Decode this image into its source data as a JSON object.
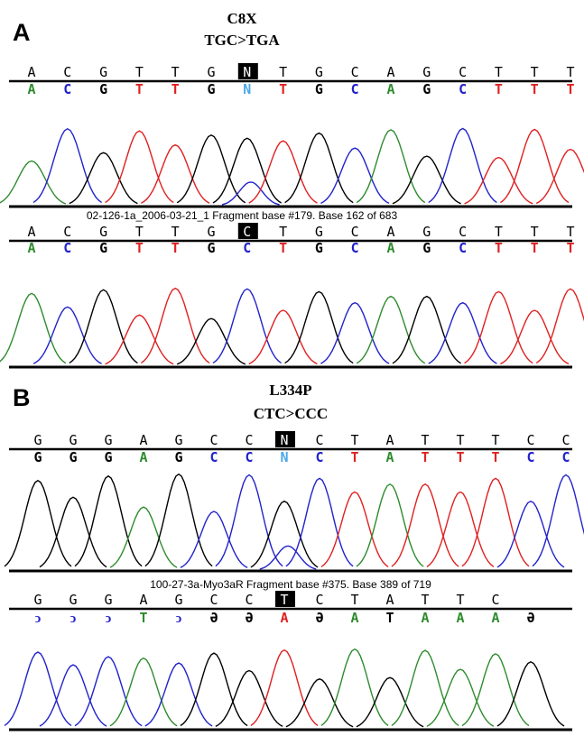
{
  "colors": {
    "A": "#2e8b2e",
    "C": "#2222cc",
    "G": "#000000",
    "T": "#e02020",
    "N": "#4aa8e8"
  },
  "panels": [
    {
      "letter": "A",
      "mutation": {
        "protein": "C8X",
        "codon": "TGC>TGA"
      },
      "tracks": [
        {
          "reference": [
            "A",
            "C",
            "G",
            "T",
            "T",
            "G",
            "N",
            "T",
            "G",
            "C",
            "A",
            "G",
            "C",
            "T",
            "T",
            "T"
          ],
          "calls": [
            "A",
            "C",
            "G",
            "T",
            "T",
            "G",
            "N",
            "T",
            "G",
            "C",
            "A",
            "G",
            "C",
            "T",
            "T",
            "T"
          ],
          "highlight": 6,
          "caption": ""
        },
        {
          "reference": [
            "A",
            "C",
            "G",
            "T",
            "T",
            "G",
            "C",
            "T",
            "G",
            "C",
            "A",
            "G",
            "C",
            "T",
            "T",
            "T"
          ],
          "calls": [
            "A",
            "C",
            "G",
            "T",
            "T",
            "G",
            "C",
            "T",
            "G",
            "C",
            "A",
            "G",
            "C",
            "T",
            "T",
            "T"
          ],
          "highlight": 6,
          "caption": "02-126-1a_2006-03-21_1 Fragment base #179. Base 162 of 683"
        }
      ]
    },
    {
      "letter": "B",
      "mutation": {
        "protein": "L334P",
        "codon": "CTC>CCC"
      },
      "tracks": [
        {
          "reference": [
            "G",
            "G",
            "G",
            "A",
            "G",
            "C",
            "C",
            "N",
            "C",
            "T",
            "A",
            "T",
            "T",
            "T",
            "C",
            "C"
          ],
          "calls": [
            "G",
            "G",
            "G",
            "A",
            "G",
            "C",
            "C",
            "N",
            "C",
            "T",
            "A",
            "T",
            "T",
            "T",
            "C",
            "C"
          ],
          "highlight": 7,
          "caption": ""
        },
        {
          "reference": [
            "G",
            "G",
            "G",
            "A",
            "G",
            "C",
            "C",
            "T",
            "C",
            "T",
            "A",
            "T",
            "T",
            "C",
            ""
          ],
          "calls": [
            "C",
            "C",
            "C",
            "A",
            "C",
            "G",
            "G",
            "T",
            "G",
            "A",
            "G",
            "A",
            "A",
            "A",
            "G"
          ],
          "calls_display": [
            "ↄ",
            "ↄ",
            "ↄ",
            "T",
            "ↄ",
            "Ә",
            "Ә",
            "A",
            "Ә",
            "A",
            "T",
            "A",
            "A",
            "A",
            "Ә"
          ],
          "highlight": 7,
          "caption": "100-27-3a-Myo3aR Fragment base #375. Base 389 of 719"
        }
      ]
    }
  ]
}
